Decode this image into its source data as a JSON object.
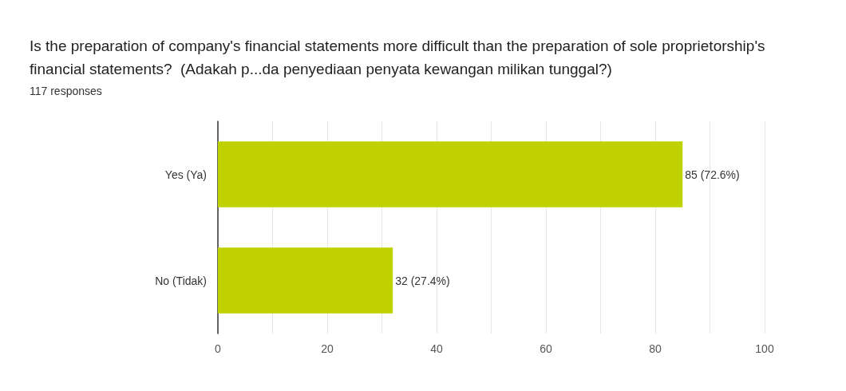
{
  "chart_data": {
    "type": "bar",
    "orientation": "horizontal",
    "title": "Is the preparation of company's financial statements more difficult than the preparation of sole proprietorship's financial statements?  (Adakah p...da penyediaan penyata kewangan milikan tunggal?)",
    "subtitle": "117 responses",
    "categories": [
      "Yes (Ya)",
      "No (Tidak)"
    ],
    "values": [
      85,
      32
    ],
    "value_labels": [
      "85 (72.6%)",
      "32 (27.4%)"
    ],
    "color": "#bfd200",
    "xlim": [
      0,
      100
    ],
    "xticks": [
      0,
      {
        "value": 10,
        "label": null
      },
      20,
      {
        "value": 30,
        "label": null
      },
      40,
      {
        "value": 50,
        "label": null
      },
      60,
      {
        "value": 70,
        "label": null
      },
      80,
      {
        "value": 90,
        "label": null
      },
      100
    ],
    "grid": "x"
  }
}
